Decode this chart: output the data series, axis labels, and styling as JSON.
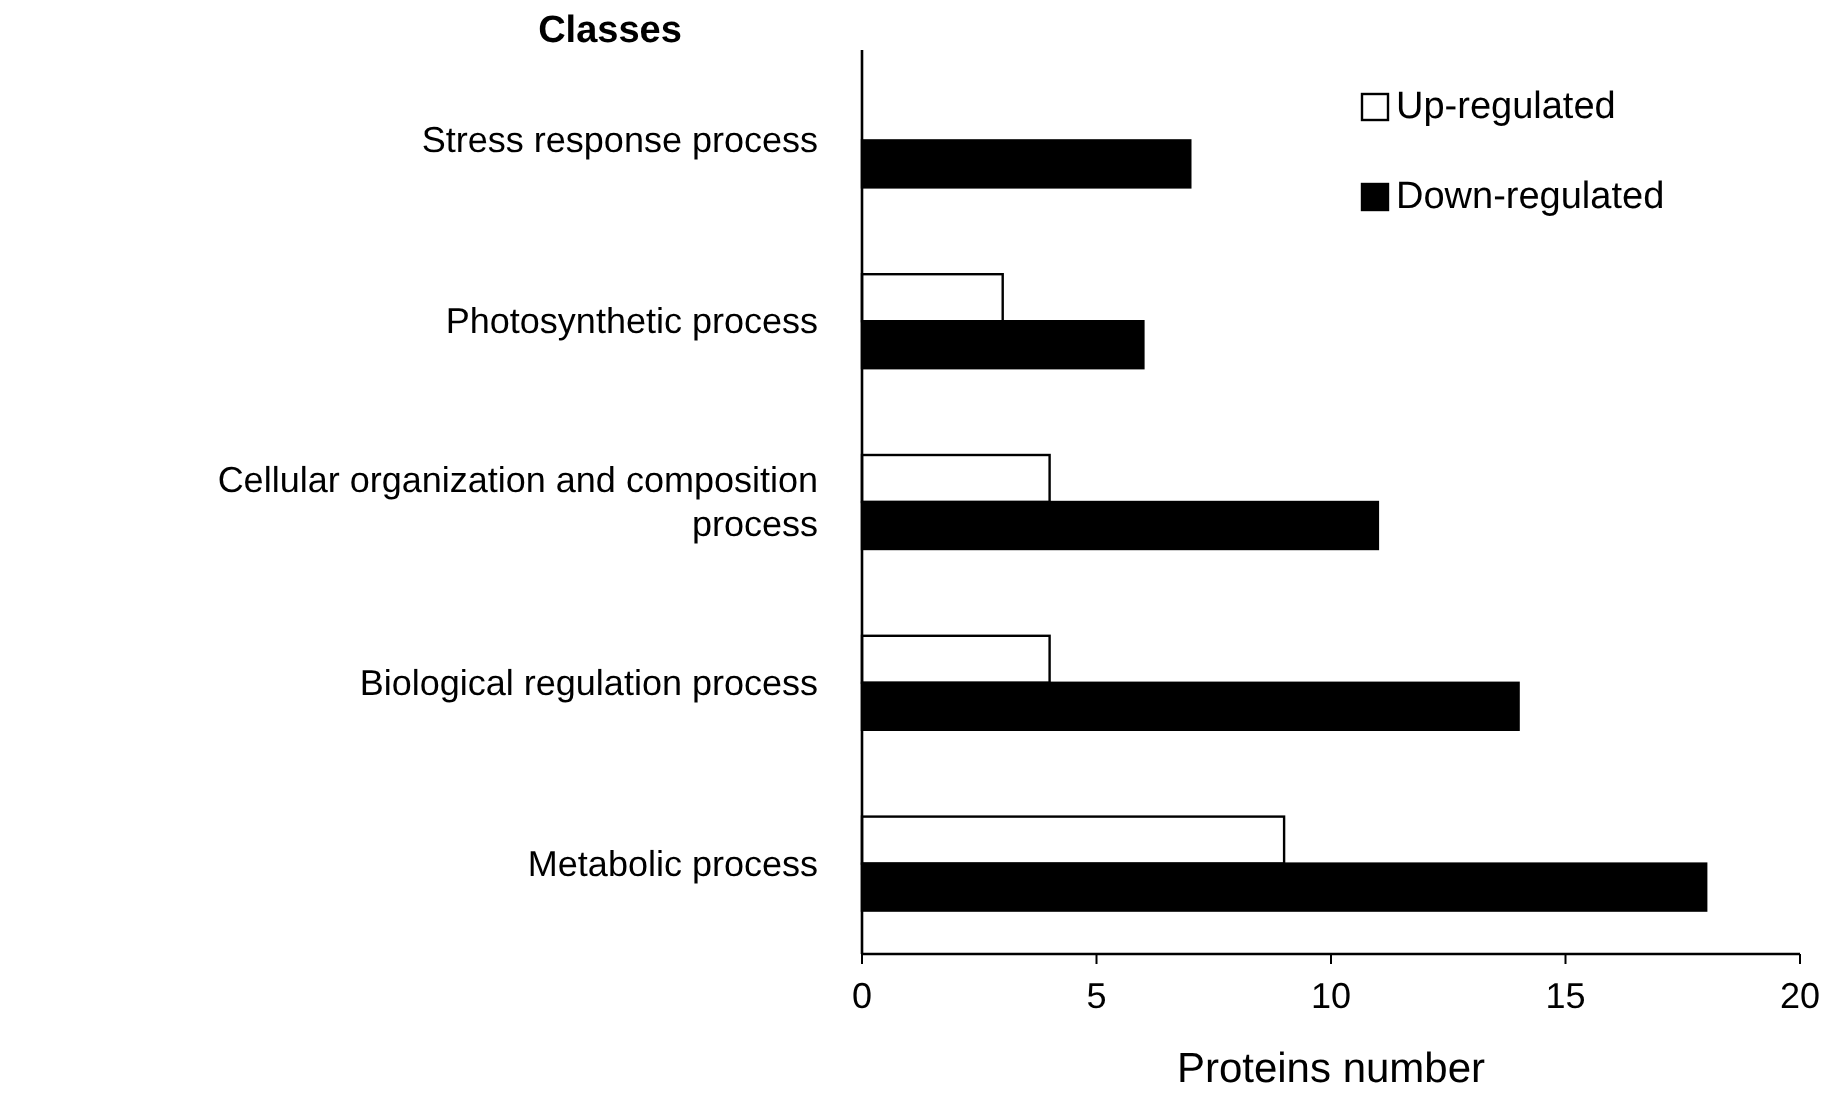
{
  "chart_data": {
    "type": "bar",
    "orientation": "horizontal",
    "ylabel": "Classes",
    "xlabel": "Proteins number",
    "categories": [
      "Stress response process",
      "Photosynthetic process",
      "Cellular organization and composition process",
      "Biological regulation process",
      "Metabolic process"
    ],
    "series": [
      {
        "name": "Up-regulated",
        "color": "#ffffff",
        "values": [
          null,
          3,
          4,
          4,
          9
        ]
      },
      {
        "name": "Down-regulated",
        "color": "#000000",
        "values": [
          7,
          6,
          11,
          14,
          18
        ]
      }
    ],
    "xlim": [
      0,
      20
    ],
    "xticks": [
      0,
      5,
      10,
      15,
      20
    ],
    "grid": false,
    "legend": "top right"
  }
}
